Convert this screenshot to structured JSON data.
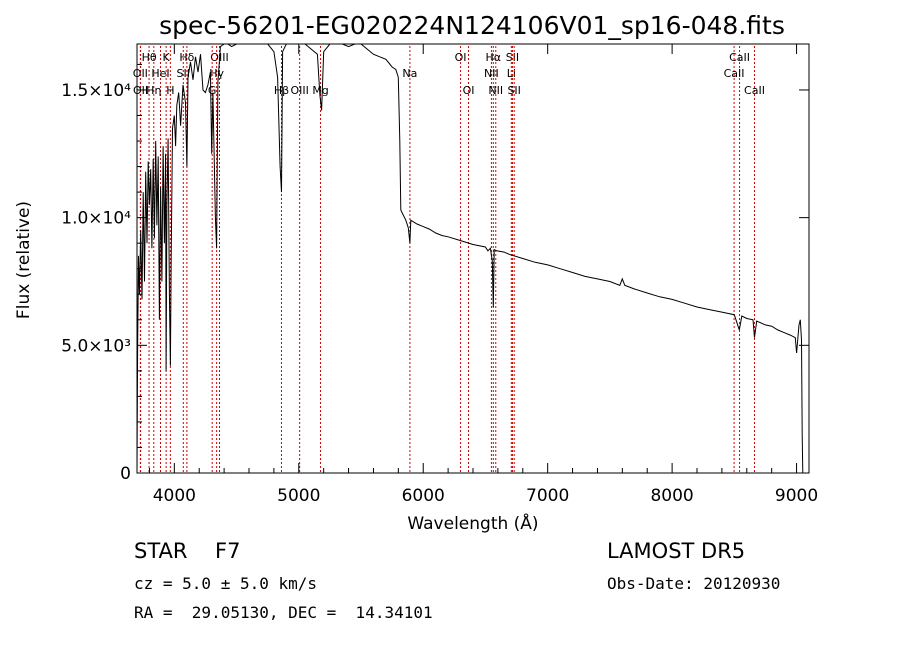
{
  "chart_data": {
    "type": "line",
    "title": "spec-56201-EG020224N124106V01_sp16-048.fits",
    "xlabel": "Wavelength (Å)",
    "ylabel": "Flux (relative)",
    "xlim": [
      3700,
      9100
    ],
    "ylim": [
      0,
      16800
    ],
    "x_ticks": [
      {
        "value": 4000,
        "label": "4000"
      },
      {
        "value": 5000,
        "label": "5000"
      },
      {
        "value": 6000,
        "label": "6000"
      },
      {
        "value": 7000,
        "label": "7000"
      },
      {
        "value": 8000,
        "label": "8000"
      },
      {
        "value": 9000,
        "label": "9000"
      }
    ],
    "y_ticks": [
      {
        "value": 0,
        "label": "0"
      },
      {
        "value": 5000,
        "label": "5.0×10³"
      },
      {
        "value": 10000,
        "label": "1.0×10⁴"
      },
      {
        "value": 15000,
        "label": "1.5×10⁴"
      }
    ],
    "grid": false,
    "series": [
      {
        "color": "#000000",
        "x": [
          3700,
          3705,
          3712,
          3720,
          3730,
          3740,
          3750,
          3760,
          3770,
          3780,
          3790,
          3800,
          3810,
          3820,
          3830,
          3840,
          3850,
          3860,
          3870,
          3880,
          3890,
          3900,
          3910,
          3920,
          3930,
          3934,
          3940,
          3950,
          3960,
          3968,
          3975,
          3985,
          4000,
          4010,
          4020,
          4035,
          4050,
          4070,
          4090,
          4101,
          4110,
          4130,
          4150,
          4170,
          4190,
          4210,
          4230,
          4250,
          4270,
          4290,
          4300,
          4310,
          4330,
          4340,
          4350,
          4370,
          4400,
          4430,
          4460,
          4500,
          4550,
          4600,
          4650,
          4700,
          4750,
          4800,
          4830,
          4850,
          4861,
          4870,
          4900,
          4950,
          5000,
          5050,
          5100,
          5150,
          5170,
          5183,
          5200,
          5250,
          5300,
          5350,
          5400,
          5450,
          5500,
          5550,
          5600,
          5650,
          5700,
          5750,
          5780,
          5800,
          5812,
          5820,
          5840,
          5860,
          5880,
          5893,
          5900,
          5950,
          6000,
          6050,
          6100,
          6150,
          6200,
          6300,
          6400,
          6500,
          6520,
          6540,
          6555,
          6563,
          6570,
          6590,
          6650,
          6700,
          6800,
          6900,
          7000,
          7100,
          7200,
          7300,
          7400,
          7500,
          7580,
          7600,
          7620,
          7700,
          7800,
          7900,
          8000,
          8100,
          8200,
          8300,
          8400,
          8500,
          8540,
          8560,
          8600,
          8650,
          8662,
          8680,
          8750,
          8800,
          8850,
          8900,
          8950,
          8990,
          9000,
          9020,
          9030,
          9040,
          9045,
          9050
        ],
        "y": [
          0,
          4800,
          8500,
          7000,
          9500,
          6800,
          11000,
          7500,
          11800,
          9000,
          12200,
          10500,
          11900,
          8800,
          12300,
          9200,
          13000,
          9700,
          12400,
          6000,
          11200,
          7500,
          12800,
          9000,
          12500,
          4000,
          10500,
          13100,
          7000,
          4200,
          8500,
          13500,
          14000,
          12800,
          14400,
          14900,
          13600,
          15200,
          14500,
          12000,
          15500,
          16100,
          15400,
          16300,
          15700,
          16400,
          15000,
          14900,
          15200,
          15700,
          12500,
          14900,
          10000,
          8800,
          15300,
          16700,
          16900,
          17200,
          16700,
          16900,
          17000,
          16800,
          17200,
          16900,
          17100,
          16500,
          15500,
          12000,
          11000,
          16500,
          16900,
          17200,
          16800,
          17100,
          16600,
          16400,
          14800,
          14200,
          16500,
          16900,
          17100,
          16800,
          16700,
          17000,
          16800,
          16600,
          16400,
          16300,
          16200,
          15900,
          15800,
          15500,
          13000,
          10300,
          10100,
          9900,
          9600,
          9000,
          9900,
          9750,
          9650,
          9550,
          9400,
          9300,
          9250,
          9100,
          8950,
          8850,
          8700,
          8800,
          8300,
          6500,
          8750,
          8700,
          8650,
          8550,
          8400,
          8250,
          8150,
          8000,
          7850,
          7700,
          7600,
          7500,
          7350,
          7600,
          7350,
          7200,
          7050,
          6900,
          6800,
          6650,
          6500,
          6400,
          6300,
          6200,
          5600,
          6150,
          6050,
          6000,
          5300,
          5950,
          5800,
          5750,
          5600,
          5500,
          5400,
          5300,
          4700,
          5800,
          6000,
          5200,
          1500,
          0
        ]
      }
    ],
    "line_markers": [
      {
        "label": "Hθ",
        "x": 3797,
        "row": 0
      },
      {
        "label": "OII",
        "x": 3727,
        "row": 1
      },
      {
        "label": "OII",
        "x": 3729,
        "row": 2
      },
      {
        "label": "HeI",
        "x": 3889,
        "row": 1
      },
      {
        "label": "Hη",
        "x": 3835,
        "row": 2
      },
      {
        "label": "K",
        "x": 3934,
        "row": 0
      },
      {
        "label": "SII",
        "x": 4072,
        "row": 1
      },
      {
        "label": "H",
        "x": 3968,
        "row": 2
      },
      {
        "label": "Hδ",
        "x": 4101,
        "row": 0
      },
      {
        "label": "OIII",
        "x": 4363,
        "row": 0
      },
      {
        "label": "Hγ",
        "x": 4340,
        "row": 1
      },
      {
        "label": "G",
        "x": 4304,
        "row": 2
      },
      {
        "label": "Hβ",
        "x": 4861,
        "row": 2
      },
      {
        "label": "OIII",
        "x": 5007,
        "row": 2
      },
      {
        "label": "Mg",
        "x": 5175,
        "row": 2
      },
      {
        "label": "Na",
        "x": 5893,
        "row": 1
      },
      {
        "label": "OI",
        "x": 6300,
        "row": 0
      },
      {
        "label": "OI",
        "x": 6364,
        "row": 2
      },
      {
        "label": "Hα",
        "x": 6563,
        "row": 0
      },
      {
        "label": "NII",
        "x": 6548,
        "row": 1
      },
      {
        "label": "NII",
        "x": 6583,
        "row": 2
      },
      {
        "label": "SII",
        "x": 6717,
        "row": 0
      },
      {
        "label": "Li",
        "x": 6708,
        "row": 1
      },
      {
        "label": "SII",
        "x": 6731,
        "row": 2
      },
      {
        "label": "CaII",
        "x": 8542,
        "row": 0
      },
      {
        "label": "CaII",
        "x": 8498,
        "row": 1
      },
      {
        "label": "CaII",
        "x": 8662,
        "row": 2
      }
    ]
  },
  "info": {
    "class_label": "STAR",
    "subclass": "F7",
    "cz_text": "cz = 5.0 ± 5.0 km/s",
    "radec_text": "RA =  29.05130, DEC =  14.34101",
    "survey": "LAMOST DR5",
    "obs_date": "Obs-Date: 20120930"
  }
}
